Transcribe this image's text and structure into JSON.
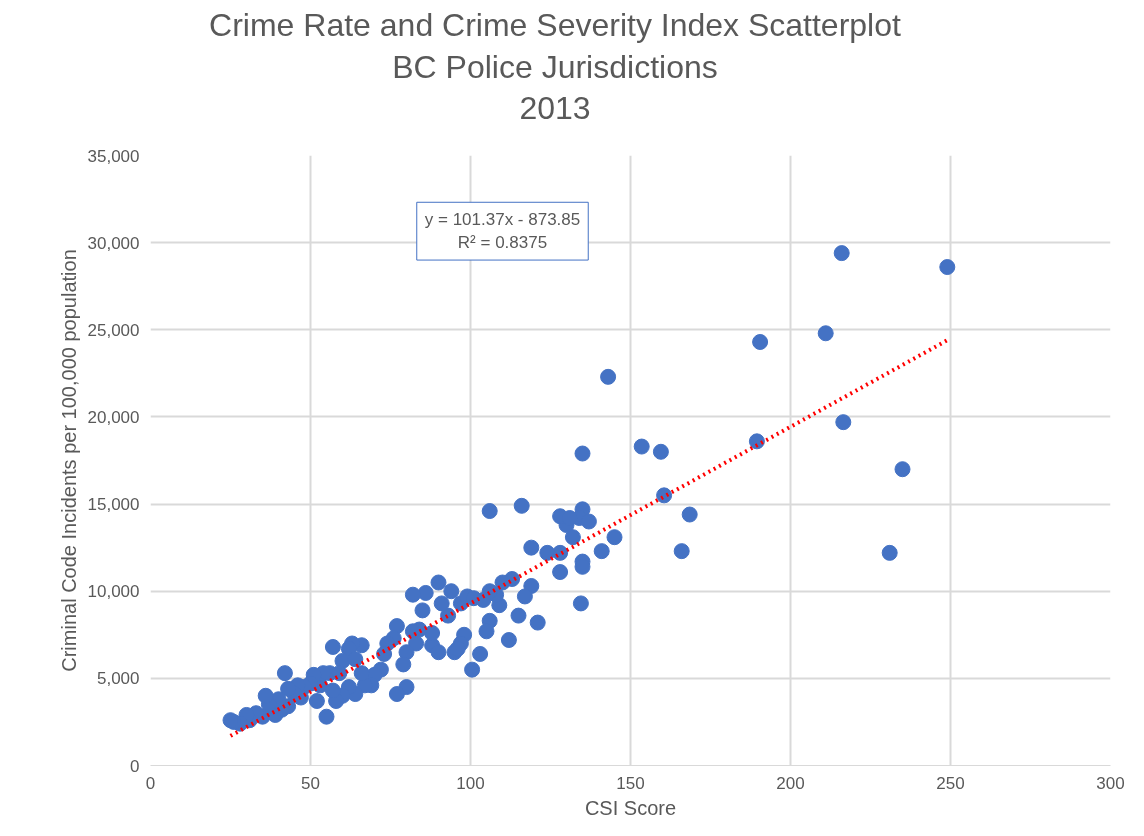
{
  "chart_data": {
    "type": "scatter",
    "title": "Crime Rate and Crime Severity Index Scatterplot",
    "subtitle": "BC Police Jurisdictions\n2013",
    "xlabel": "CSI Score",
    "ylabel": "Criminal Code Incidents per 100,000 population",
    "annotations": [
      "y = 101.37x - 873.85\nR² = 0.8375"
    ],
    "xlim": [
      0,
      300
    ],
    "xticks": [
      0,
      50,
      100,
      150,
      200,
      250,
      300
    ],
    "ylim": [
      0,
      35000
    ],
    "yticks": [
      0,
      {
        "value": 5000,
        "label": "5,000"
      },
      {
        "value": 10000,
        "label": "10,000"
      },
      {
        "value": 15000,
        "label": "15,000"
      },
      {
        "value": 20000,
        "label": "20,000"
      },
      {
        "value": 25000,
        "label": "25,000"
      },
      {
        "value": 30000,
        "label": "30,000"
      },
      {
        "value": 35000,
        "label": "35,000"
      }
    ],
    "grid": true,
    "series": [
      {
        "color": "#4472c4",
        "marker": "circle",
        "x": [
          216,
          249,
          190.5,
          211,
          216.5,
          235,
          231,
          189.5,
          153.5,
          159.5,
          160.5,
          168.5,
          166,
          143,
          135,
          135,
          134,
          137,
          132,
          130,
          128,
          131,
          145,
          141,
          135,
          135,
          128,
          128,
          124,
          134.5,
          121,
          119,
          119,
          116,
          106,
          117,
          115,
          113,
          112,
          110,
          109,
          108,
          106,
          106,
          105,
          103,
          100.5,
          98,
          97,
          97,
          99,
          101,
          104,
          94,
          93,
          91,
          90,
          86,
          82,
          85,
          88,
          90,
          95,
          96,
          88,
          84,
          82,
          83,
          80,
          79,
          80,
          77,
          77,
          76,
          74,
          73,
          72,
          70,
          69,
          67,
          66,
          63,
          62,
          60,
          64,
          66,
          64,
          62,
          60,
          58,
          57,
          55,
          56,
          54,
          57,
          59,
          53,
          52,
          51,
          50,
          48,
          47,
          46,
          45,
          43,
          43,
          42,
          41,
          40,
          39,
          37,
          36,
          35,
          33,
          31,
          30,
          28,
          26,
          25
        ],
        "values": [
          29400,
          28600,
          24300,
          24800,
          19700,
          17000,
          12200,
          18600,
          18300,
          18000,
          15500,
          14400,
          12300,
          22300,
          17900,
          14700,
          14200,
          14000,
          13100,
          13800,
          14300,
          14200,
          13100,
          12300,
          11700,
          11400,
          11100,
          12200,
          12200,
          9300,
          8200,
          10300,
          12500,
          14900,
          14600,
          9700,
          8600,
          10700,
          7200,
          10500,
          9200,
          9800,
          10000,
          8300,
          7700,
          6400,
          5500,
          7500,
          7000,
          9300,
          9700,
          9600,
          9500,
          10000,
          8600,
          9300,
          10500,
          9900,
          9800,
          8900,
          6900,
          6500,
          6500,
          6700,
          7600,
          7800,
          7700,
          7000,
          6500,
          5800,
          4500,
          4100,
          8000,
          7300,
          7000,
          6400,
          5500,
          5200,
          4600,
          4600,
          6900,
          7000,
          6700,
          6000,
          6100,
          5300,
          4100,
          4500,
          4000,
          3700,
          4300,
          2800,
          5300,
          5300,
          6800,
          5300,
          4600,
          3700,
          5200,
          4700,
          4500,
          3900,
          4600,
          4100,
          4400,
          3400,
          5300,
          3200,
          3800,
          2900,
          3500,
          4000,
          2800,
          3000,
          2600,
          2900,
          2400,
          2500,
          2600
        ]
      },
      {
        "type": "line",
        "color": "#ff0000",
        "line_style": "dotted",
        "marker": "none",
        "x": [
          25,
          249
        ],
        "values": [
          1700,
          24400
        ]
      }
    ]
  }
}
